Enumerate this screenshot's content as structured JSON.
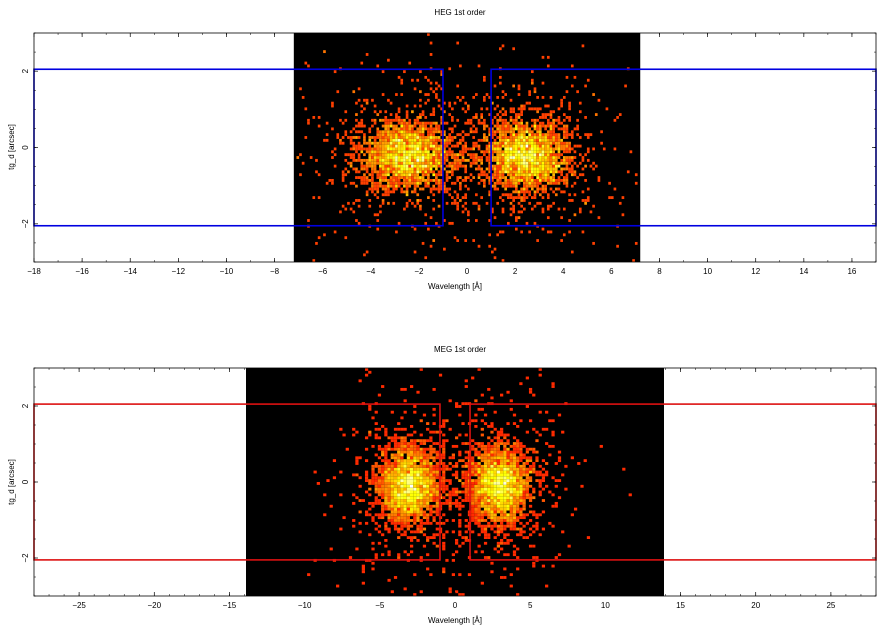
{
  "panels": [
    {
      "id": "heg",
      "title": "HEG 1st order",
      "xlabel": "Wavelength [Å]",
      "ylabel": "tg_d [arcsec]",
      "box_color": "#0000e0",
      "cmap": "hot",
      "xlim": [
        -18,
        17
      ],
      "ylim": [
        -3,
        3
      ],
      "xticks": [
        -18,
        -16,
        -14,
        -12,
        -10,
        -8,
        -6,
        -4,
        -2,
        0,
        2,
        4,
        6,
        8,
        10,
        12,
        14,
        16
      ],
      "yticks": [
        -2,
        0,
        2
      ],
      "xtick_labels": [
        "−18",
        "−16",
        "−14",
        "−12",
        "−10",
        "−8",
        "−6",
        "−4",
        "−2",
        "0",
        "2",
        "4",
        "6",
        "8",
        "10",
        "12",
        "14",
        "16"
      ],
      "ytick_labels": [
        "−2",
        "0",
        "2"
      ]
    },
    {
      "id": "meg",
      "title": "MEG 1st order",
      "xlabel": "Wavelength [Å]",
      "ylabel": "tg_d [arcsec]",
      "box_color": "#dd1111",
      "cmap": "hot",
      "xlim": [
        -28,
        28
      ],
      "ylim": [
        -3,
        3
      ],
      "xticks": [
        -25,
        -20,
        -15,
        -10,
        -5,
        0,
        5,
        10,
        15,
        20,
        25
      ],
      "yticks": [
        -2,
        0,
        2
      ],
      "xtick_labels": [
        "−25",
        "−20",
        "−15",
        "−10",
        "−5",
        "0",
        "5",
        "10",
        "15",
        "20",
        "25"
      ],
      "ytick_labels": [
        "−2",
        "0",
        "2"
      ]
    }
  ],
  "chart_data": [
    {
      "type": "heatmap",
      "title": "HEG 1st order",
      "xlabel": "Wavelength [Å]",
      "ylabel": "tg_d [arcsec]",
      "xlim": [
        -18,
        17
      ],
      "ylim": [
        -3,
        3
      ],
      "image_extent_x": [
        -7.2,
        7.2
      ],
      "image_extent_y": [
        -3,
        3
      ],
      "background": "#000000",
      "source_clusters": [
        {
          "x_center": -2.5,
          "y_center": -0.2,
          "x_sigma": 1.0,
          "y_sigma": 0.45,
          "relative_intensity": 1.0
        },
        {
          "x_center": 2.5,
          "y_center": -0.2,
          "x_sigma": 0.9,
          "y_sigma": 0.45,
          "relative_intensity": 1.0
        }
      ],
      "extraction_regions": [
        {
          "x_range": [
            -18,
            -1.0
          ],
          "y_range": [
            -2.05,
            2.05
          ]
        },
        {
          "x_range": [
            1.0,
            17
          ],
          "y_range": [
            -2.05,
            2.05
          ]
        }
      ]
    },
    {
      "type": "heatmap",
      "title": "MEG 1st order",
      "xlabel": "Wavelength [Å]",
      "ylabel": "tg_d [arcsec]",
      "xlim": [
        -28,
        28
      ],
      "ylim": [
        -3,
        3
      ],
      "image_extent_x": [
        -13.9,
        13.9
      ],
      "image_extent_y": [
        -3,
        3
      ],
      "background": "#000000",
      "source_clusters": [
        {
          "x_center": -3.0,
          "y_center": -0.1,
          "x_sigma": 1.0,
          "y_sigma": 0.5,
          "relative_intensity": 1.0
        },
        {
          "x_center": 3.0,
          "y_center": -0.1,
          "x_sigma": 1.0,
          "y_sigma": 0.5,
          "relative_intensity": 1.0
        }
      ],
      "extraction_regions": [
        {
          "x_range": [
            -28,
            -1.0
          ],
          "y_range": [
            -2.05,
            2.05
          ]
        },
        {
          "x_range": [
            1.0,
            28
          ],
          "y_range": [
            -2.05,
            2.05
          ]
        }
      ]
    }
  ]
}
